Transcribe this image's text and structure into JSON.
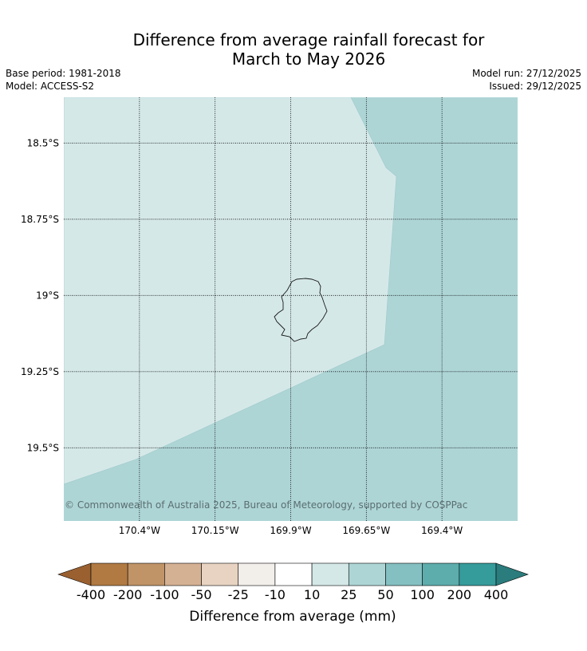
{
  "title": {
    "line1": "Difference from average rainfall forecast for",
    "line2": "March to May 2026"
  },
  "meta_left": {
    "base_period": "Base period: 1981-2018",
    "model": "Model: ACCESS-S2"
  },
  "meta_right": {
    "model_run": "Model run: 27/12/2025",
    "issued": "Issued: 29/12/2025"
  },
  "map": {
    "lat_range": [
      -19.74,
      -18.35
    ],
    "lon_range": [
      -170.65,
      -169.15
    ],
    "lat_ticks": [
      {
        "value": -18.5,
        "label": "18.5°S"
      },
      {
        "value": -18.75,
        "label": "18.75°S"
      },
      {
        "value": -19.0,
        "label": "19°S"
      },
      {
        "value": -19.25,
        "label": "19.25°S"
      },
      {
        "value": -19.5,
        "label": "19.5°S"
      }
    ],
    "lon_ticks": [
      {
        "value": -170.4,
        "label": "170.4°W"
      },
      {
        "value": -170.15,
        "label": "170.15°W"
      },
      {
        "value": -169.9,
        "label": "169.9°W"
      },
      {
        "value": -169.65,
        "label": "169.65°W"
      },
      {
        "value": -169.4,
        "label": "169.4°W"
      }
    ],
    "regions": [
      {
        "category": "10 to 25 mm",
        "color": "#d5e8e8"
      },
      {
        "category": "25 to 50 mm",
        "color": "#aed5d6"
      }
    ],
    "island": "Niue",
    "copyright": "© Commonwealth of Australia 2025, Bureau of Meteorology, supported by COSPPac"
  },
  "colorbar": {
    "title": "Difference from average (mm)",
    "ticks": [
      "-400",
      "-200",
      "-100",
      "-50",
      "-25",
      "-10",
      "10",
      "25",
      "50",
      "100",
      "200",
      "400"
    ],
    "colors": [
      "#a86d38",
      "#b07a42",
      "#c09467",
      "#d5b193",
      "#e8d3c2",
      "#f2eeea",
      "#ffffff",
      "#d5e8e8",
      "#aed5d6",
      "#84c0c1",
      "#5dadad",
      "#369b9b",
      "#2b7c7c"
    ],
    "extend_low_color": "#9a6030",
    "extend_high_color": "#2b7c7c"
  }
}
